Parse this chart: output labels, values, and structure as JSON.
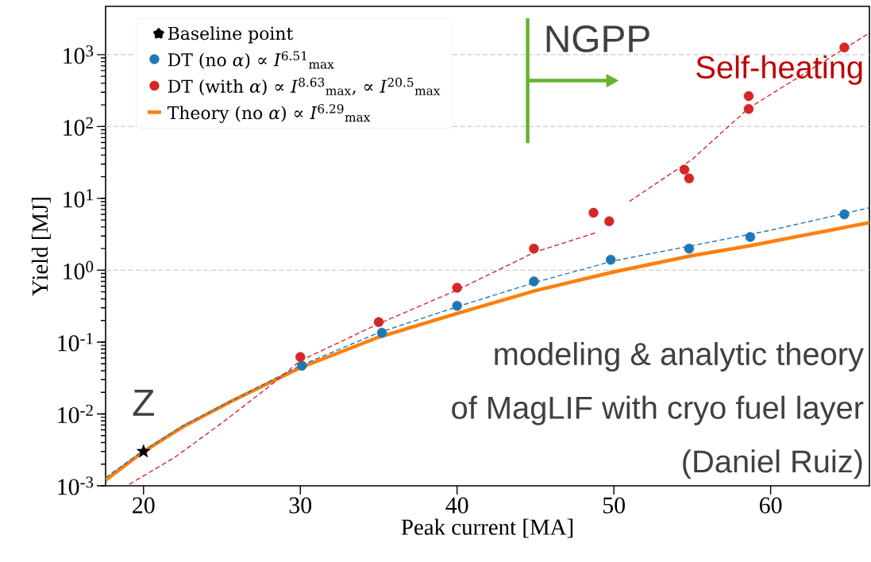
{
  "chart_data": {
    "type": "scatter",
    "xlabel": "Peak current [MA]",
    "ylabel": "Yield [MJ]",
    "xlim": [
      17.58,
      66.3
    ],
    "ylim": [
      0.001,
      4700
    ],
    "log": "y",
    "xticks": [
      20,
      30,
      40,
      50,
      60
    ],
    "yticks": [
      {
        "value": 0.001,
        "label": "10$^{-3}$"
      },
      {
        "value": 0.01,
        "label": "10$^{-2}$"
      },
      {
        "value": 0.1,
        "label": "10$^{-1}$"
      },
      {
        "value": 1,
        "label": "10$^{0}$"
      },
      {
        "value": 10,
        "label": "10$^{1}$"
      },
      {
        "value": 100,
        "label": "10$^{2}$"
      },
      {
        "value": 1000,
        "label": "10$^{3}$"
      }
    ],
    "legend": "top left",
    "series": [
      {
        "name": "Baseline point",
        "marker": "star",
        "color": "#000000",
        "x": [
          20
        ],
        "values": [
          0.003
        ]
      },
      {
        "name": "DT (no *α*) ∝ *I*$^{6.51}$$_{max}$",
        "marker": "circle",
        "color": "#1f77b4",
        "x": [
          30.1,
          35.2,
          40,
          44.9,
          49.8,
          54.8,
          58.7,
          64.7
        ],
        "values": [
          0.047,
          0.135,
          0.32,
          0.7,
          1.4,
          2.0,
          2.9,
          6.0
        ]
      },
      {
        "name": "DT (with *α*) ∝ *I*$^{8.63}$$_{max}$,  ∝ *I*$^{20.5}$$_{max}$",
        "marker": "circle",
        "color": "#d62728",
        "x": [
          30,
          35,
          40,
          44.9,
          48.7,
          49.7,
          54.5,
          54.8,
          58.6,
          58.6,
          64.7
        ],
        "values": [
          0.062,
          0.19,
          0.57,
          2.0,
          6.3,
          4.8,
          25,
          19,
          265,
          176,
          1260
        ]
      },
      {
        "name": "Theory (no *α*) ∝ *I*$^{6.29}$$_{max}$",
        "type": "line",
        "line_style": "solid",
        "color": "#ff7f0e",
        "x": [
          17.58,
          20,
          22.5,
          25.6,
          30,
          35,
          40,
          45,
          50,
          55,
          58.7,
          66.3
        ],
        "values": [
          0.0012,
          0.003,
          0.0066,
          0.015,
          0.044,
          0.117,
          0.25,
          0.52,
          0.95,
          1.6,
          2.2,
          4.6
        ]
      },
      {
        "type": "line",
        "line_style": "dashed",
        "color": "#1f77b4",
        "x": [
          17.58,
          20,
          22.5,
          25,
          30,
          35,
          40,
          45,
          50,
          55,
          60,
          66.3
        ],
        "values": [
          0.0013,
          0.0031,
          0.0068,
          0.013,
          0.047,
          0.135,
          0.31,
          0.68,
          1.35,
          2.2,
          3.6,
          7.4
        ]
      },
      {
        "type": "line",
        "line_style": "dashed",
        "color": "#d62728",
        "x": [
          19.1,
          22,
          25,
          28,
          30,
          35,
          40,
          45,
          48.8,
          50,
          51,
          55,
          58.6,
          66.3
        ],
        "values": [
          0.00105,
          0.0025,
          0.0075,
          0.024,
          0.055,
          0.18,
          0.53,
          1.8,
          3.3,
          null,
          9.1,
          35,
          180,
          2000
        ]
      }
    ],
    "ref_lines": [
      {
        "axis": "y",
        "value": 1,
        "color": "#cccccc",
        "line_style": "dashed"
      },
      {
        "axis": "y",
        "value": 100,
        "color": "#cccccc",
        "line_style": "dashed"
      },
      {
        "axis": "y",
        "value": 1000,
        "color": "#cccccc",
        "line_style": "dashed"
      },
      {
        "axis": "x",
        "value": 44.5,
        "label": "NGPP",
        "color": "#65b32e",
        "line_style": "solid"
      }
    ],
    "annotations": [
      "Self-heating",
      {
        "text": "Z",
        "x": 20,
        "y": 0.003
      },
      "modeling & analytic theory",
      "of MagLIF with cryo fuel layer",
      "(Daniel Ruiz)"
    ]
  }
}
